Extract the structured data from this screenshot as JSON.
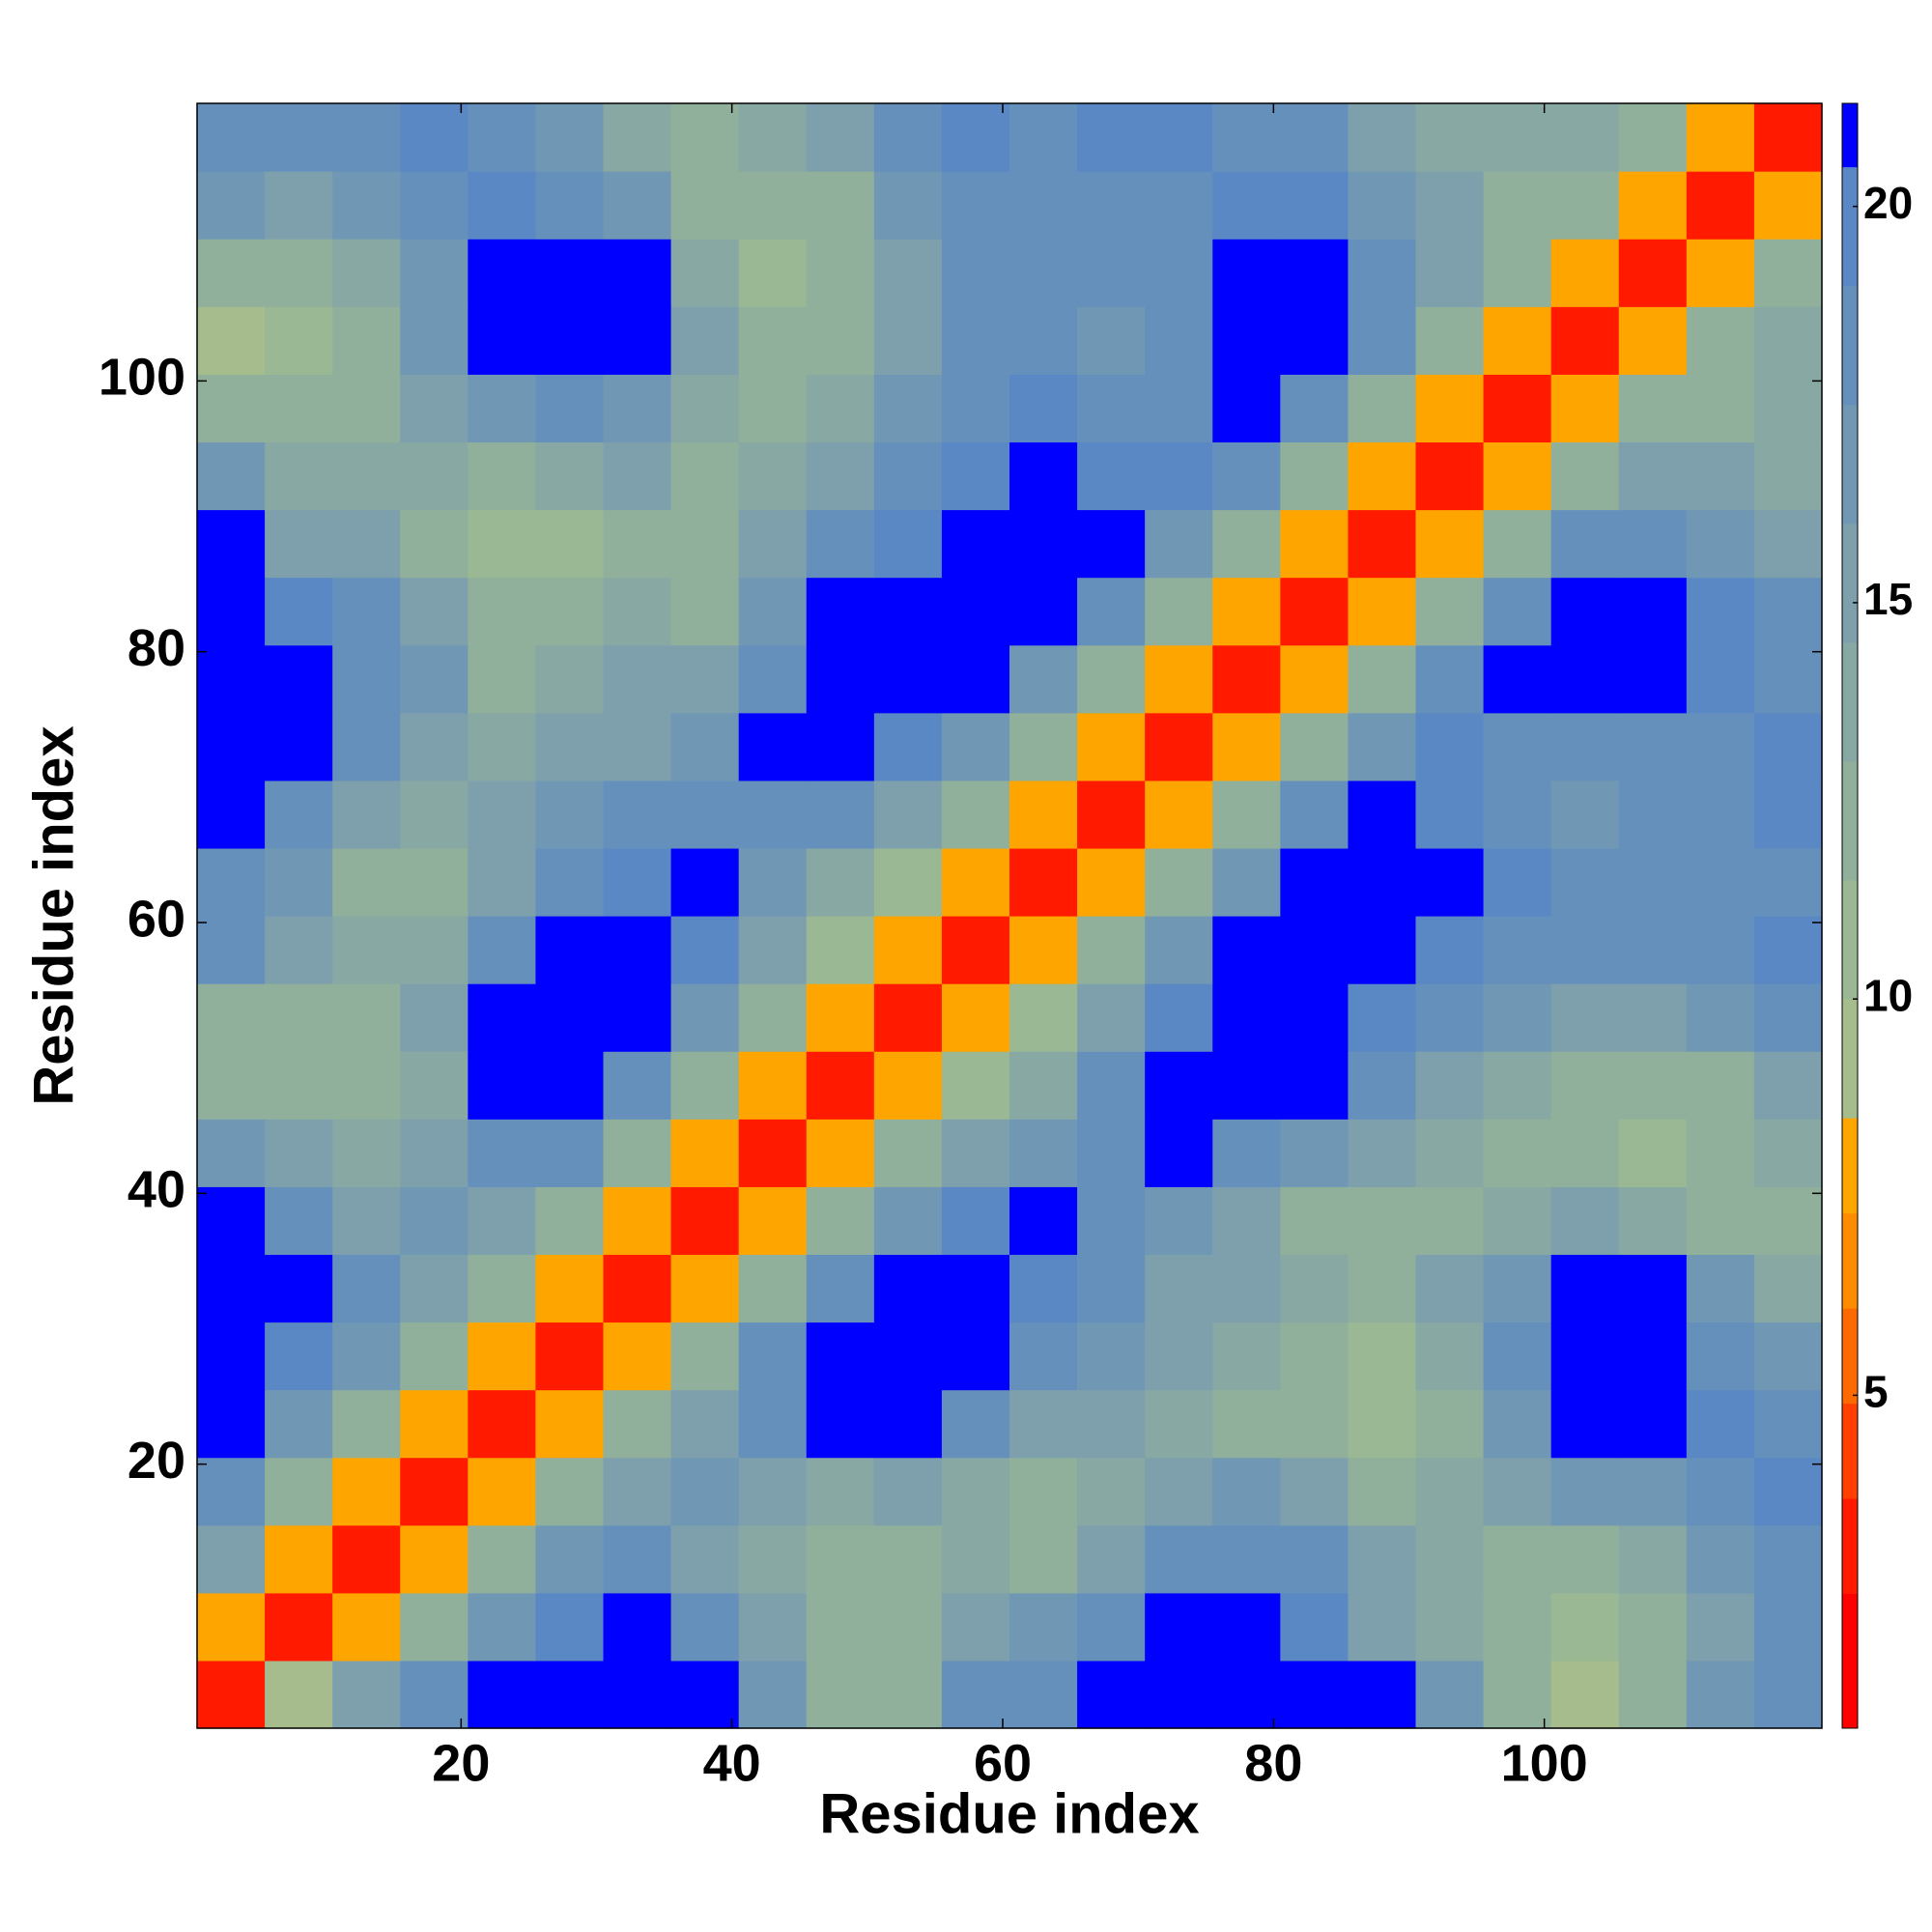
{
  "chart_data": {
    "type": "heatmap",
    "xlabel": "Residue index",
    "ylabel": "Residue index",
    "x": [
      3,
      8,
      13,
      18,
      23,
      28,
      33,
      38,
      43,
      48,
      53,
      58,
      63,
      68,
      73,
      78,
      83,
      88,
      93,
      98,
      103,
      108,
      113,
      118
    ],
    "y": [
      3,
      8,
      13,
      18,
      23,
      28,
      33,
      38,
      43,
      48,
      53,
      58,
      63,
      68,
      73,
      78,
      83,
      88,
      93,
      98,
      103,
      108,
      113,
      118
    ],
    "values": [
      [
        3,
        10,
        15,
        18,
        22,
        22,
        22,
        21,
        17,
        12,
        13,
        18,
        19,
        22,
        22,
        22,
        22,
        22,
        17,
        12,
        10,
        12,
        17,
        19
      ],
      [
        8,
        3,
        8,
        13,
        17,
        20,
        22,
        19,
        15,
        12,
        12,
        15,
        17,
        19,
        21,
        22,
        20,
        16,
        14,
        12,
        11,
        13,
        16,
        18
      ],
      [
        15,
        8,
        3,
        8,
        13,
        17,
        19,
        16,
        14,
        12,
        13,
        14,
        13,
        16,
        18,
        19,
        18,
        16,
        14,
        13,
        13,
        14,
        17,
        19
      ],
      [
        18,
        13,
        8,
        3,
        8,
        12,
        15,
        17,
        16,
        14,
        15,
        14,
        13,
        14,
        16,
        17,
        16,
        13,
        14,
        16,
        17,
        17,
        18,
        20
      ],
      [
        22,
        17,
        13,
        8,
        3,
        8,
        12,
        16,
        19,
        22,
        22,
        19,
        16,
        15,
        14,
        13,
        13,
        11,
        13,
        17,
        21,
        22,
        20,
        18
      ],
      [
        22,
        20,
        17,
        12,
        8,
        3,
        8,
        13,
        18,
        22,
        22,
        21,
        19,
        17,
        15,
        14,
        12,
        11,
        14,
        18,
        22,
        22,
        19,
        17
      ],
      [
        22,
        22,
        19,
        15,
        12,
        8,
        3,
        8,
        13,
        18,
        22,
        22,
        20,
        18,
        16,
        15,
        14,
        13,
        15,
        17,
        22,
        22,
        17,
        14
      ],
      [
        21,
        19,
        16,
        17,
        16,
        13,
        8,
        3,
        8,
        13,
        17,
        20,
        21,
        19,
        17,
        15,
        13,
        12,
        13,
        14,
        15,
        14,
        12,
        12
      ],
      [
        17,
        15,
        14,
        16,
        19,
        18,
        13,
        8,
        3,
        8,
        13,
        15,
        17,
        19,
        21,
        19,
        17,
        15,
        14,
        13,
        12,
        11,
        12,
        14
      ],
      [
        12,
        12,
        12,
        14,
        22,
        22,
        18,
        13,
        8,
        3,
        8,
        11,
        14,
        18,
        22,
        22,
        21,
        18,
        16,
        14,
        13,
        12,
        13,
        15
      ],
      [
        13,
        12,
        13,
        15,
        22,
        22,
        22,
        17,
        13,
        8,
        3,
        8,
        11,
        15,
        20,
        22,
        22,
        20,
        18,
        17,
        16,
        16,
        17,
        18
      ],
      [
        18,
        15,
        14,
        14,
        19,
        21,
        22,
        20,
        15,
        11,
        8,
        3,
        8,
        12,
        17,
        21,
        22,
        22,
        20,
        18,
        19,
        18,
        19,
        20
      ],
      [
        19,
        17,
        13,
        13,
        16,
        19,
        20,
        21,
        17,
        14,
        11,
        8,
        3,
        8,
        12,
        17,
        21,
        22,
        22,
        20,
        19,
        19,
        18,
        19
      ],
      [
        22,
        19,
        16,
        14,
        15,
        17,
        18,
        19,
        19,
        18,
        15,
        12,
        8,
        3,
        8,
        13,
        18,
        21,
        20,
        18,
        17,
        18,
        19,
        20
      ],
      [
        22,
        21,
        18,
        16,
        14,
        15,
        16,
        17,
        21,
        22,
        20,
        17,
        12,
        8,
        3,
        8,
        13,
        17,
        20,
        19,
        18,
        18,
        19,
        20
      ],
      [
        22,
        22,
        19,
        17,
        13,
        14,
        15,
        15,
        19,
        22,
        22,
        21,
        17,
        13,
        8,
        3,
        8,
        13,
        18,
        22,
        22,
        22,
        20,
        19
      ],
      [
        22,
        20,
        18,
        16,
        13,
        12,
        14,
        13,
        17,
        21,
        22,
        22,
        21,
        18,
        13,
        8,
        3,
        8,
        13,
        18,
        22,
        22,
        20,
        18
      ],
      [
        22,
        16,
        16,
        13,
        11,
        11,
        13,
        12,
        15,
        18,
        20,
        22,
        22,
        21,
        17,
        13,
        8,
        3,
        8,
        13,
        18,
        19,
        17,
        15
      ],
      [
        17,
        14,
        14,
        14,
        13,
        14,
        15,
        13,
        14,
        16,
        18,
        20,
        22,
        20,
        20,
        18,
        13,
        8,
        3,
        8,
        13,
        16,
        15,
        14
      ],
      [
        12,
        12,
        13,
        16,
        17,
        18,
        17,
        14,
        13,
        14,
        17,
        18,
        20,
        18,
        19,
        22,
        18,
        13,
        8,
        3,
        8,
        12,
        13,
        14
      ],
      [
        10,
        11,
        13,
        17,
        21,
        22,
        22,
        15,
        12,
        13,
        16,
        19,
        19,
        17,
        18,
        22,
        22,
        18,
        13,
        8,
        3,
        8,
        12,
        14
      ],
      [
        12,
        13,
        14,
        17,
        22,
        22,
        22,
        14,
        11,
        12,
        16,
        18,
        19,
        18,
        18,
        22,
        22,
        19,
        16,
        12,
        8,
        3,
        8,
        12
      ],
      [
        17,
        16,
        17,
        18,
        20,
        19,
        17,
        12,
        12,
        13,
        17,
        19,
        18,
        19,
        19,
        20,
        20,
        17,
        15,
        13,
        12,
        8,
        3,
        8
      ],
      [
        19,
        18,
        19,
        20,
        18,
        17,
        14,
        12,
        14,
        15,
        18,
        20,
        19,
        20,
        20,
        19,
        18,
        15,
        14,
        14,
        14,
        12,
        8,
        3
      ]
    ],
    "xlim": [
      0.5,
      120.5
    ],
    "ylim": [
      0.5,
      120.5
    ],
    "xticks": [
      20,
      40,
      60,
      80,
      100
    ],
    "yticks": [
      20,
      40,
      60,
      80,
      100
    ],
    "clim": [
      0.8,
      21.3
    ],
    "cticks": [
      5,
      10,
      15,
      20
    ],
    "colorscale": [
      {
        "max": 2.5,
        "color": "#ff0000"
      },
      {
        "max": 3.7,
        "color": "#ff1a00"
      },
      {
        "max": 4.9,
        "color": "#ff4000"
      },
      {
        "max": 6.1,
        "color": "#ff6a00"
      },
      {
        "max": 7.3,
        "color": "#ff8c00"
      },
      {
        "max": 8.5,
        "color": "#ffa500"
      },
      {
        "max": 10,
        "color": "#a6bc8c"
      },
      {
        "max": 11.5,
        "color": "#9ab894"
      },
      {
        "max": 13,
        "color": "#90b09c"
      },
      {
        "max": 14.5,
        "color": "#88a8a4"
      },
      {
        "max": 16,
        "color": "#7ea0ac"
      },
      {
        "max": 17.5,
        "color": "#7098b4"
      },
      {
        "max": 19,
        "color": "#6690bc"
      },
      {
        "max": 20.5,
        "color": "#5a88c4"
      },
      {
        "max": 21.3,
        "color": "#0000ff"
      }
    ]
  }
}
